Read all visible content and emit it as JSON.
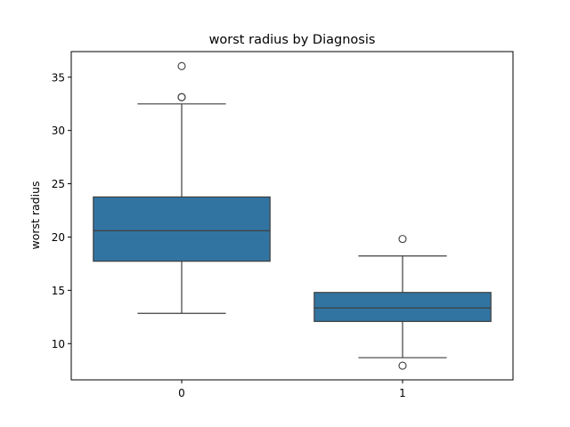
{
  "chart_data": {
    "type": "boxplot",
    "title": "worst radius by Diagnosis",
    "xlabel": "",
    "ylabel": "worst radius",
    "categories": [
      "0",
      "1"
    ],
    "ylim": [
      6.6,
      37.4
    ],
    "yticks": [
      "10",
      "15",
      "20",
      "25",
      "30",
      "35"
    ],
    "box_color": "#3274a1",
    "line_color": "#3f3f3f",
    "grid": false,
    "boxes": [
      {
        "category": "0",
        "whisker_low": 12.84,
        "q1": 17.73,
        "median": 20.59,
        "q3": 23.76,
        "whisker_high": 32.49,
        "outliers": [
          33.12,
          33.13,
          36.04
        ]
      },
      {
        "category": "1",
        "whisker_low": 8.68,
        "q1": 12.08,
        "median": 13.35,
        "q3": 14.8,
        "whisker_high": 18.22,
        "outliers": [
          19.82,
          7.93
        ]
      }
    ]
  }
}
